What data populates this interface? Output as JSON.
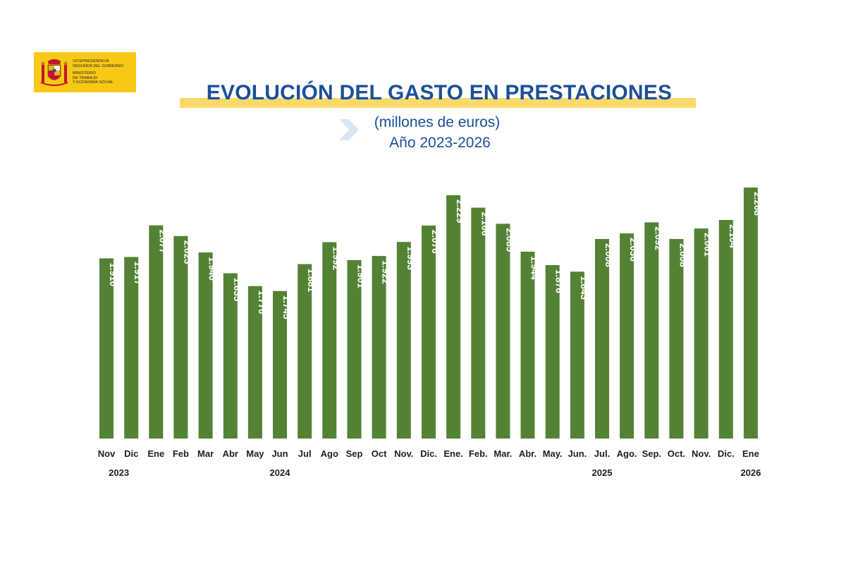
{
  "logo": {
    "lines": [
      "VICEPRESIDENCIA",
      "SEGUNDA DEL GOBIERNO",
      "MINISTERIO",
      "DE TRABAJO",
      "Y ECONOMÍA SOCIAL"
    ],
    "color": "#f7c816"
  },
  "header": {
    "title": "EVOLUCIÓN DEL GASTO EN PRESTACIONES",
    "subtitle_unit": "(millones de euros)",
    "subtitle_period": "Año 2023-2026"
  },
  "colors": {
    "bar": "#548235",
    "title": "#1b4f9a",
    "highlight": "#f9d96b",
    "axis_text": "#1f1f1f"
  },
  "chart_data": {
    "type": "bar",
    "title": "EVOLUCIÓN DEL GASTO EN PRESTACIONES",
    "xlabel": "",
    "ylabel": "",
    "categories": [
      "Nov",
      "Dic",
      "Ene",
      "Feb",
      "Mar",
      "Abr",
      "May",
      "Jun",
      "Jul",
      "Ago",
      "Sep",
      "Oct",
      "Nov.",
      "Dic.",
      "Ene.",
      "Feb.",
      "Mar.",
      "Abr.",
      "May.",
      "Jun.",
      "Jul.",
      "Ago.",
      "Sep.",
      "Oct.",
      "Nov.",
      "Dic.",
      "Ene"
    ],
    "values": [
      1910,
      1917,
      2077,
      2023,
      1940,
      1835,
      1770,
      1745,
      1881,
      1992,
      1901,
      1922,
      1993,
      2076,
      2229,
      2166,
      2085,
      1944,
      1876,
      1843,
      2008,
      2036,
      2092,
      2008,
      2061,
      2104,
      2268
    ],
    "value_labels": [
      "1.910",
      "1.917",
      "2.077",
      "2.023",
      "1.940",
      "1.835",
      "1.770",
      "1.745",
      "1.881",
      "1.992",
      "1.901",
      "1.922",
      "1.993",
      "2.076",
      "2.229",
      "2.166",
      "2.085",
      "1.944",
      "1.876",
      "1.843",
      "2.008",
      "2.036",
      "2.092",
      "2.008",
      "2.061",
      "2.104",
      "2.268"
    ],
    "year_labels": [
      {
        "label": "2023",
        "index": 0.5
      },
      {
        "label": "2024",
        "index": 7
      },
      {
        "label": "2025",
        "index": 20
      },
      {
        "label": "2026",
        "index": 26
      }
    ],
    "ylim": [
      1000,
      2300
    ],
    "grid": false,
    "legend": "none"
  }
}
